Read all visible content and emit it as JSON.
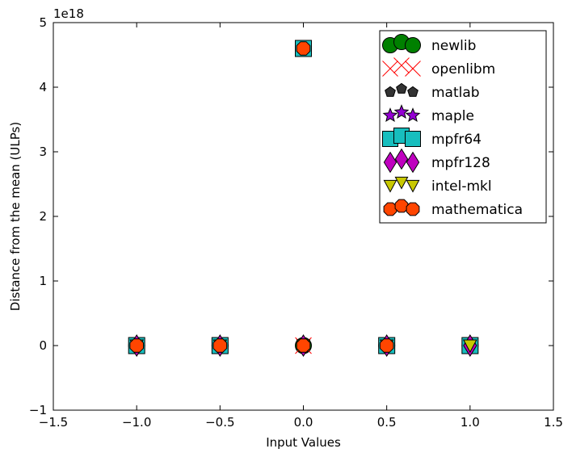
{
  "chart_data": {
    "type": "scatter",
    "title": "",
    "xlabel": "Input Values",
    "ylabel": "Distance from the mean (ULPs)",
    "y_offset_text": "1e18",
    "y_scale": 1e+18,
    "xlim": [
      -1.5,
      1.5
    ],
    "ylim": [
      -1,
      5
    ],
    "xticks": [
      -1.5,
      -1.0,
      -0.5,
      0.0,
      0.5,
      1.0,
      1.5
    ],
    "xtick_labels": [
      "−1.5",
      "−1.0",
      "−0.5",
      "0.0",
      "0.5",
      "1.0",
      "1.5"
    ],
    "yticks": [
      -1,
      0,
      1,
      2,
      3,
      4,
      5
    ],
    "ytick_labels": [
      "−1",
      "0",
      "1",
      "2",
      "3",
      "4",
      "5"
    ],
    "grid": false,
    "legend_position": "top-right",
    "series": [
      {
        "name": "newlib",
        "marker": "circle",
        "color": "#008000",
        "points": [
          [
            -1.0,
            0
          ],
          [
            -0.5,
            0
          ],
          [
            0.0,
            0
          ],
          [
            0.5,
            0
          ],
          [
            1.0,
            0
          ]
        ]
      },
      {
        "name": "openlibm",
        "marker": "x",
        "color": "#ff0000",
        "points": [
          [
            -1.0,
            0
          ],
          [
            -0.5,
            0
          ],
          [
            0.0,
            0
          ],
          [
            0.5,
            0
          ],
          [
            1.0,
            0
          ]
        ]
      },
      {
        "name": "matlab",
        "marker": "pentagon",
        "color": "#333333",
        "points": [
          [
            -1.0,
            0
          ],
          [
            -0.5,
            0
          ],
          [
            0.0,
            0
          ],
          [
            0.5,
            0
          ],
          [
            1.0,
            0
          ]
        ]
      },
      {
        "name": "maple",
        "marker": "star",
        "color": "#9400d3",
        "points": [
          [
            -1.0,
            0
          ],
          [
            -0.5,
            0
          ],
          [
            0.0,
            0
          ],
          [
            0.5,
            0
          ],
          [
            1.0,
            0
          ]
        ]
      },
      {
        "name": "mpfr64",
        "marker": "square",
        "color": "#17bebe",
        "points": [
          [
            -1.0,
            0
          ],
          [
            -0.5,
            0
          ],
          [
            0.0,
            4.6
          ],
          [
            0.5,
            0
          ],
          [
            1.0,
            0
          ]
        ]
      },
      {
        "name": "mpfr128",
        "marker": "diamond",
        "color": "#bf00bf",
        "points": [
          [
            -1.0,
            0
          ],
          [
            -0.5,
            0
          ],
          [
            0.0,
            0
          ],
          [
            0.5,
            0
          ],
          [
            1.0,
            0
          ]
        ]
      },
      {
        "name": "intel-mkl",
        "marker": "triangle-down",
        "color": "#c8c800",
        "points": [
          [
            -1.0,
            0
          ],
          [
            -0.5,
            0
          ],
          [
            0.0,
            0
          ],
          [
            0.5,
            0
          ],
          [
            1.0,
            0
          ]
        ]
      },
      {
        "name": "mathematica",
        "marker": "octagon",
        "color": "#ff4500",
        "points": [
          [
            -1.0,
            0
          ],
          [
            -0.5,
            0
          ],
          [
            0.0,
            4.6
          ],
          [
            0.0,
            0
          ],
          [
            0.5,
            0
          ]
        ]
      }
    ]
  }
}
